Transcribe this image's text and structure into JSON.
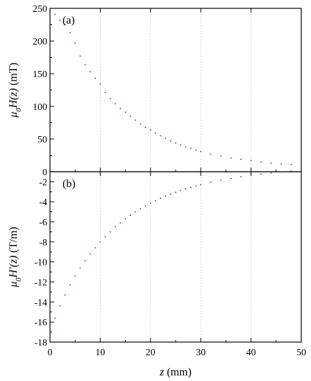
{
  "chart_data": [
    {
      "panel": "top",
      "type": "scatter",
      "panel_label": "(a)",
      "ylabel_parts": [
        {
          "t": "μ",
          "style": "italic"
        },
        {
          "t": "0",
          "style": "italic-sub"
        },
        {
          "t": "H(z)",
          "style": "italic"
        },
        {
          "t": " (mT)",
          "style": "normal"
        }
      ],
      "xlim": [
        0,
        50
      ],
      "ylim": [
        0,
        250
      ],
      "yticks": [
        0,
        50,
        100,
        150,
        200,
        250
      ],
      "grid_x": true,
      "series": [
        {
          "color": "#2a2ad0",
          "points": [
            [
              0,
              249
            ],
            [
              1,
              241
            ],
            [
              2,
              232
            ],
            [
              3,
              225
            ],
            [
              4,
              213
            ],
            [
              5,
              197
            ],
            [
              6,
              177
            ],
            [
              7,
              164
            ],
            [
              8,
              153
            ],
            [
              9,
              143
            ],
            [
              10,
              134
            ],
            [
              11,
              121
            ],
            [
              12,
              112
            ],
            [
              13,
              104
            ],
            [
              14,
              97
            ],
            [
              15,
              91
            ],
            [
              16,
              85
            ],
            [
              17,
              79
            ],
            [
              18,
              73
            ],
            [
              19,
              68
            ],
            [
              20,
              64
            ],
            [
              21,
              59
            ],
            [
              22,
              55
            ],
            [
              23,
              51
            ],
            [
              24,
              47
            ],
            [
              25,
              44
            ],
            [
              26,
              41
            ],
            [
              27,
              38
            ],
            [
              28,
              36
            ],
            [
              29,
              33
            ],
            [
              30,
              31
            ],
            [
              32,
              27
            ],
            [
              34,
              24
            ],
            [
              36,
              21
            ],
            [
              38,
              19
            ],
            [
              40,
              17
            ],
            [
              42,
              15
            ],
            [
              44,
              13
            ],
            [
              46,
              12
            ],
            [
              48,
              11
            ],
            [
              50,
              10
            ]
          ]
        }
      ]
    },
    {
      "panel": "bottom",
      "type": "scatter",
      "panel_label": "(b)",
      "ylabel_parts": [
        {
          "t": "μ",
          "style": "italic"
        },
        {
          "t": "0",
          "style": "italic-sub"
        },
        {
          "t": "H'(z)",
          "style": "italic"
        },
        {
          "t": " (T/m)",
          "style": "normal"
        }
      ],
      "xlabel_parts": [
        {
          "t": "z",
          "style": "italic"
        },
        {
          "t": " (mm)",
          "style": "normal"
        }
      ],
      "xlim": [
        0,
        50
      ],
      "ylim": [
        -18,
        -1
      ],
      "xticks": [
        0,
        10,
        20,
        30,
        40,
        50
      ],
      "yticks": [
        -18,
        -16,
        -14,
        -12,
        -10,
        -8,
        -6,
        -4,
        -2
      ],
      "grid_x": true,
      "series": [
        {
          "color": "#2a2ad0",
          "points": [
            [
              0,
              -17.1
            ],
            [
              1,
              -15.6
            ],
            [
              2,
              -14.4
            ],
            [
              3,
              -13.3
            ],
            [
              4,
              -12.3
            ],
            [
              5,
              -11.4
            ],
            [
              6,
              -10.6
            ],
            [
              7,
              -9.9
            ],
            [
              8,
              -9.2
            ],
            [
              9,
              -8.6
            ],
            [
              10,
              -8.0
            ],
            [
              11,
              -7.5
            ],
            [
              12,
              -7.0
            ],
            [
              13,
              -6.5
            ],
            [
              14,
              -6.1
            ],
            [
              15,
              -5.7
            ],
            [
              16,
              -5.35
            ],
            [
              17,
              -5.0
            ],
            [
              18,
              -4.7
            ],
            [
              19,
              -4.4
            ],
            [
              20,
              -4.15
            ],
            [
              21,
              -3.9
            ],
            [
              22,
              -3.65
            ],
            [
              23,
              -3.45
            ],
            [
              24,
              -3.25
            ],
            [
              25,
              -3.05
            ],
            [
              26,
              -2.88
            ],
            [
              27,
              -2.72
            ],
            [
              28,
              -2.57
            ],
            [
              29,
              -2.42
            ],
            [
              30,
              -2.3
            ],
            [
              32,
              -2.05
            ],
            [
              34,
              -1.85
            ],
            [
              36,
              -1.67
            ],
            [
              38,
              -1.5
            ],
            [
              40,
              -1.36
            ],
            [
              42,
              -1.23
            ],
            [
              44,
              -1.12
            ],
            [
              46,
              -1.02
            ],
            [
              48,
              -0.93
            ],
            [
              50,
              -0.85
            ]
          ]
        }
      ]
    }
  ]
}
